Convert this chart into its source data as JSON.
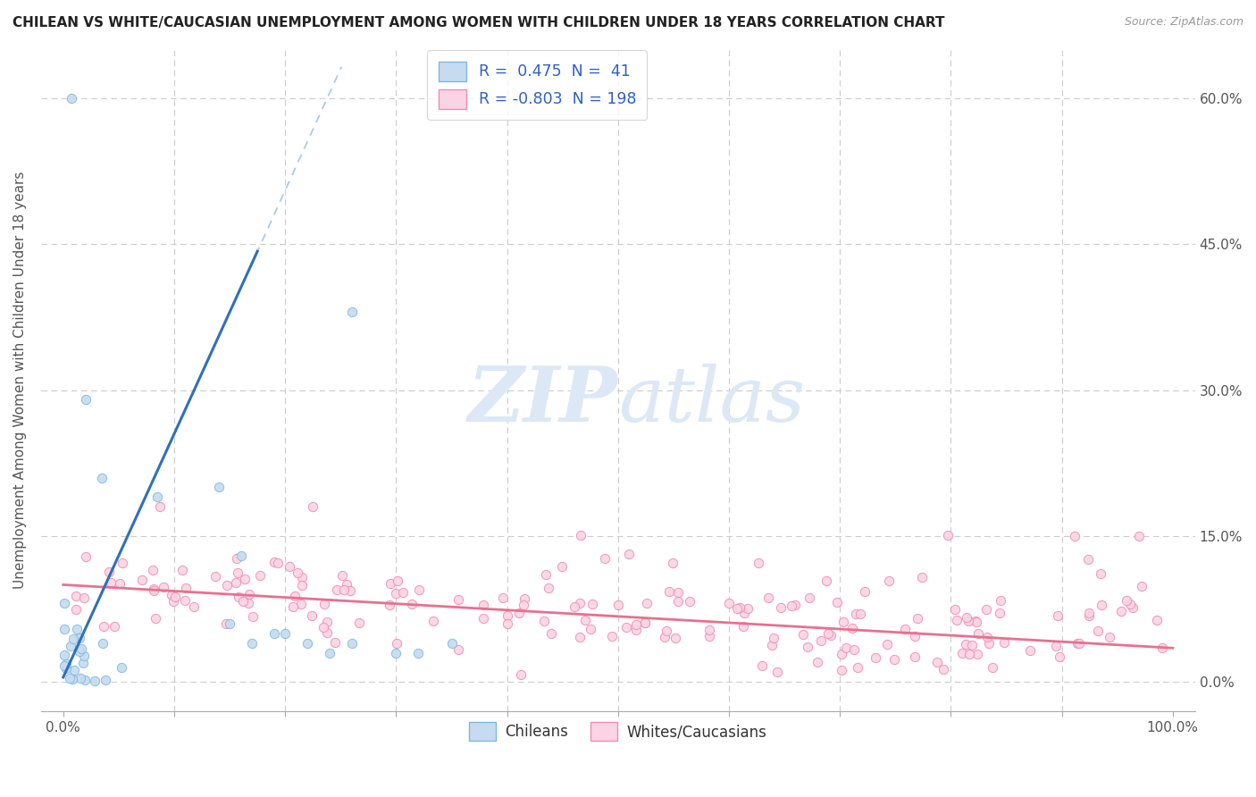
{
  "title": "CHILEAN VS WHITE/CAUCASIAN UNEMPLOYMENT AMONG WOMEN WITH CHILDREN UNDER 18 YEARS CORRELATION CHART",
  "source": "Source: ZipAtlas.com",
  "ylabel": "Unemployment Among Women with Children Under 18 years",
  "ytick_labels": [
    "0.0%",
    "15.0%",
    "30.0%",
    "45.0%",
    "60.0%"
  ],
  "ytick_values": [
    0.0,
    0.15,
    0.3,
    0.45,
    0.6
  ],
  "xlim": [
    -0.02,
    1.02
  ],
  "ylim": [
    -0.03,
    0.65
  ],
  "blue_color": "#7fb8e0",
  "blue_fill": "#c6dbef",
  "pink_color": "#f08cb0",
  "pink_fill": "#fad4e3",
  "blue_line_color": "#3070b8",
  "pink_line_color": "#e87090",
  "dash_color": "#a8c4e0",
  "background_color": "#ffffff",
  "grid_color": "#cccccc",
  "watermark_color": "#dce8f5",
  "title_color": "#222222",
  "tick_color": "#555555",
  "legend_text_color": "#3060c0",
  "legend_label1": "Chileans",
  "legend_label2": "Whites/Caucasians",
  "chilean_slope": 2.5,
  "chilean_intercept": 0.005,
  "chilean_line_xmax": 0.175,
  "white_slope": -0.065,
  "white_intercept": 0.1
}
